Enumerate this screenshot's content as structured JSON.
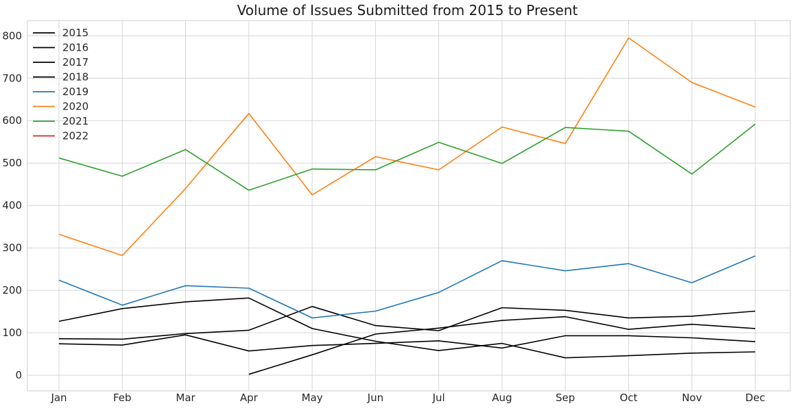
{
  "chart_data": {
    "type": "line",
    "title": "Volume of Issues Submitted from 2015 to Present",
    "xlabel": "",
    "ylabel": "",
    "categories": [
      "Jan",
      "Feb",
      "Mar",
      "Apr",
      "May",
      "Jun",
      "Jul",
      "Aug",
      "Sep",
      "Oct",
      "Nov",
      "Dec"
    ],
    "y_ticks": [
      0,
      100,
      200,
      300,
      400,
      500,
      600,
      700,
      800
    ],
    "ylim": [
      -37,
      836
    ],
    "grid": true,
    "legend_position": "top-left",
    "series": [
      {
        "name": "2015",
        "color": "#000000",
        "values": [
          null,
          null,
          null,
          2,
          48,
          97,
          111,
          129,
          138,
          108,
          120,
          110
        ]
      },
      {
        "name": "2016",
        "color": "#000000",
        "values": [
          127,
          157,
          173,
          182,
          110,
          80,
          58,
          75,
          41,
          46,
          52,
          55
        ]
      },
      {
        "name": "2017",
        "color": "#000000",
        "values": [
          86,
          85,
          98,
          106,
          162,
          117,
          105,
          159,
          153,
          135,
          139,
          151
        ]
      },
      {
        "name": "2018",
        "color": "#000000",
        "values": [
          74,
          71,
          95,
          57,
          70,
          75,
          81,
          64,
          93,
          93,
          88,
          79
        ]
      },
      {
        "name": "2019",
        "color": "#1f77b4",
        "values": [
          224,
          165,
          211,
          205,
          135,
          151,
          195,
          270,
          246,
          263,
          218,
          281
        ]
      },
      {
        "name": "2020",
        "color": "#ff7f0e",
        "values": [
          332,
          282,
          440,
          617,
          425,
          515,
          484,
          585,
          546,
          795,
          690,
          632
        ]
      },
      {
        "name": "2021",
        "color": "#2ca02c",
        "values": [
          512,
          469,
          532,
          436,
          486,
          484,
          549,
          499,
          584,
          575,
          474,
          592
        ]
      },
      {
        "name": "2022",
        "color": "#d62728",
        "values": [
          null,
          null,
          null,
          null,
          null,
          null,
          null,
          null,
          null,
          null,
          null,
          null
        ]
      }
    ]
  }
}
